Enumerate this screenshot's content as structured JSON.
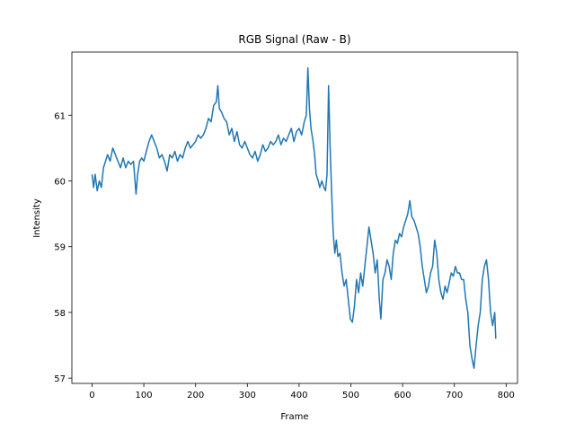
{
  "chart_data": {
    "type": "line",
    "title": "RGB Signal (Raw - B)",
    "x_label": "Frame",
    "y_label": "Intensity",
    "xlim": [
      -39,
      822
    ],
    "ylim": [
      56.92,
      61.96
    ],
    "xticks": [
      0,
      100,
      200,
      300,
      400,
      500,
      600,
      700,
      800
    ],
    "yticks": [
      57,
      58,
      59,
      60,
      61
    ],
    "series": [
      {
        "name": "B",
        "color": "#1f77b4",
        "x": [
          0,
          3,
          6,
          10,
          14,
          18,
          22,
          26,
          30,
          35,
          40,
          45,
          50,
          55,
          60,
          65,
          70,
          75,
          80,
          85,
          88,
          92,
          96,
          100,
          105,
          110,
          115,
          120,
          125,
          130,
          135,
          140,
          145,
          150,
          155,
          160,
          165,
          170,
          175,
          180,
          185,
          190,
          195,
          200,
          205,
          210,
          215,
          220,
          225,
          230,
          235,
          240,
          243,
          246,
          250,
          255,
          260,
          265,
          270,
          275,
          280,
          285,
          290,
          295,
          300,
          305,
          310,
          315,
          320,
          325,
          330,
          335,
          340,
          345,
          350,
          355,
          360,
          365,
          370,
          375,
          380,
          385,
          390,
          395,
          400,
          405,
          410,
          414,
          417,
          420,
          423,
          427,
          430,
          433,
          437,
          440,
          444,
          448,
          451,
          454,
          457,
          460,
          463,
          466,
          469,
          472,
          475,
          479,
          483,
          487,
          491,
          495,
          499,
          503,
          507,
          511,
          515,
          519,
          523,
          527,
          531,
          535,
          539,
          543,
          547,
          551,
          555,
          558,
          562,
          566,
          570,
          574,
          578,
          582,
          586,
          590,
          594,
          598,
          602,
          606,
          610,
          614,
          618,
          622,
          626,
          630,
          634,
          638,
          642,
          646,
          650,
          654,
          658,
          662,
          666,
          670,
          674,
          678,
          682,
          686,
          690,
          694,
          698,
          702,
          706,
          710,
          714,
          718,
          722,
          726,
          730,
          734,
          738,
          742,
          746,
          750,
          754,
          758,
          762,
          766,
          770,
          774,
          778,
          780
        ],
        "values": [
          60.1,
          59.9,
          60.1,
          59.85,
          60.0,
          59.9,
          60.2,
          60.3,
          60.4,
          60.3,
          60.5,
          60.4,
          60.3,
          60.2,
          60.35,
          60.2,
          60.3,
          60.25,
          60.3,
          59.8,
          60.1,
          60.3,
          60.35,
          60.3,
          60.45,
          60.6,
          60.7,
          60.6,
          60.5,
          60.35,
          60.4,
          60.3,
          60.15,
          60.4,
          60.35,
          60.45,
          60.3,
          60.4,
          60.35,
          60.5,
          60.6,
          60.5,
          60.55,
          60.6,
          60.7,
          60.65,
          60.7,
          60.8,
          60.95,
          60.9,
          61.15,
          61.2,
          61.45,
          61.1,
          61.05,
          60.95,
          60.9,
          60.7,
          60.8,
          60.6,
          60.75,
          60.55,
          60.5,
          60.6,
          60.5,
          60.4,
          60.35,
          60.45,
          60.3,
          60.4,
          60.55,
          60.45,
          60.5,
          60.6,
          60.55,
          60.6,
          60.7,
          60.55,
          60.65,
          60.6,
          60.7,
          60.8,
          60.6,
          60.75,
          60.8,
          60.7,
          60.9,
          61.0,
          61.72,
          61.1,
          60.8,
          60.6,
          60.4,
          60.1,
          60.0,
          59.9,
          60.0,
          59.9,
          59.85,
          60.1,
          61.45,
          60.5,
          59.8,
          59.2,
          58.9,
          59.1,
          58.85,
          58.9,
          58.6,
          58.4,
          58.5,
          58.2,
          57.9,
          57.85,
          58.1,
          58.5,
          58.3,
          58.6,
          58.4,
          58.7,
          59.0,
          59.3,
          59.1,
          58.9,
          58.6,
          58.8,
          58.2,
          57.9,
          58.5,
          58.6,
          58.8,
          58.7,
          58.5,
          58.9,
          59.1,
          59.05,
          59.2,
          59.15,
          59.3,
          59.4,
          59.5,
          59.7,
          59.45,
          59.4,
          59.3,
          59.2,
          59.0,
          58.7,
          58.5,
          58.3,
          58.4,
          58.6,
          58.7,
          59.1,
          58.9,
          58.5,
          58.3,
          58.2,
          58.4,
          58.3,
          58.45,
          58.6,
          58.55,
          58.7,
          58.6,
          58.6,
          58.5,
          58.5,
          58.2,
          58.0,
          57.5,
          57.3,
          57.15,
          57.5,
          57.8,
          58.0,
          58.5,
          58.7,
          58.8,
          58.5,
          58.0,
          57.8,
          58.0,
          57.6
        ]
      }
    ]
  }
}
